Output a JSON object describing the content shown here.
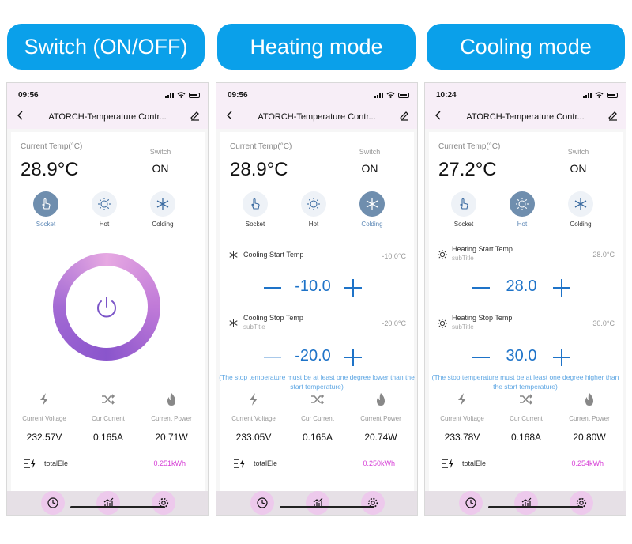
{
  "headers": [
    "Switch (ON/OFF)",
    "Heating mode",
    "Cooling mode"
  ],
  "status_icons": [
    "signal-bars",
    "wifi-icon",
    "battery-icon",
    "location-arrow-icon"
  ],
  "phones": [
    {
      "time": "09:56",
      "title": "ATORCH-Temperature Contr...",
      "temp_label": "Current Temp(°C)",
      "temp": "28.9°C",
      "switch_label": "Switch",
      "switch_value": "ON",
      "active_mode": "socket",
      "modes": [
        "Socket",
        "Hot",
        "Colding"
      ],
      "metrics_labels": [
        "Current Voltage",
        "Cur Current",
        "Current Power"
      ],
      "metrics": [
        "232.57V",
        "0.165A",
        "20.71W"
      ],
      "total_label": "totalEle",
      "total_value": "0.251kWh"
    },
    {
      "time": "09:56",
      "title": "ATORCH-Temperature Contr...",
      "temp_label": "Current Temp(°C)",
      "temp": "28.9°C",
      "switch_label": "Switch",
      "switch_value": "ON",
      "active_mode": "colding",
      "modes": [
        "Socket",
        "Hot",
        "Colding"
      ],
      "start_name": "Cooling Start Temp",
      "start_value": "-10.0°C",
      "start_step": "-10.0",
      "stop_name": "Cooling Stop Temp",
      "stop_sub": "subTitle",
      "stop_value": "-20.0°C",
      "stop_step": "-20.0",
      "hint": "(The stop temperature must be at least one degree lower than the start temperature)",
      "metrics_labels": [
        "Current Voltage",
        "Cur Current",
        "Current Power"
      ],
      "metrics": [
        "233.05V",
        "0.165A",
        "20.74W"
      ],
      "total_label": "totalEle",
      "total_value": "0.250kWh"
    },
    {
      "time": "10:24",
      "title": "ATORCH-Temperature Contr...",
      "temp_label": "Current Temp(°C)",
      "temp": "27.2°C",
      "switch_label": "Switch",
      "switch_value": "ON",
      "active_mode": "hot",
      "modes": [
        "Socket",
        "Hot",
        "Colding"
      ],
      "start_name": "Heating Start Temp",
      "start_sub": "subTitle",
      "start_value": "28.0°C",
      "start_step": "28.0",
      "stop_name": "Heating Stop Temp",
      "stop_sub": "subTitle",
      "stop_value": "30.0°C",
      "stop_step": "30.0",
      "hint": "(The stop temperature must be at least one degree higher than the start temperature)",
      "metrics_labels": [
        "Current Voltage",
        "Cur Current",
        "Current Power"
      ],
      "metrics": [
        "233.78V",
        "0.168A",
        "20.80W"
      ],
      "total_label": "totalEle",
      "total_value": "0.254kWh"
    }
  ],
  "colors": {
    "header_blue": "#0aa0ea",
    "accent_blue": "#1e73c8",
    "active_mode_bg": "#6f8eae",
    "kwh_magenta": "#d63fd6",
    "ring_purple": "#8a55cc"
  }
}
